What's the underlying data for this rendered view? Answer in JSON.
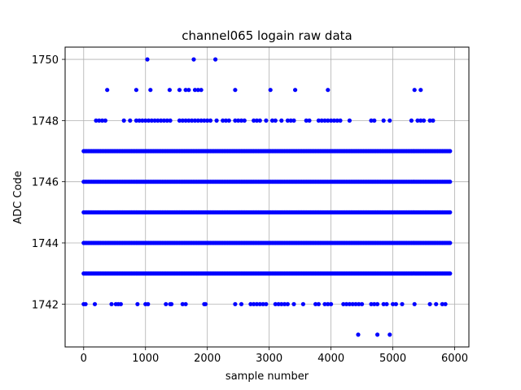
{
  "chart_data": {
    "type": "scatter",
    "title": "channel065 logain raw data",
    "xlabel": "sample number",
    "ylabel": "ADC Code",
    "xlim": [
      -300,
      6230
    ],
    "ylim": [
      1740.6,
      1750.4
    ],
    "xticks": [
      0,
      1000,
      2000,
      3000,
      4000,
      5000,
      6000
    ],
    "yticks": [
      1742,
      1744,
      1746,
      1748,
      1750
    ],
    "grid": true,
    "legend": "none",
    "marker_color": "#0000ff",
    "x_range": [
      0,
      5940
    ],
    "dense_levels": [
      1743,
      1744,
      1745,
      1746,
      1747
    ],
    "sparse_levels": {
      "1742": [
        0,
        30,
        180,
        450,
        520,
        560,
        600,
        870,
        1000,
        1040,
        1330,
        1400,
        1420,
        1600,
        1650,
        1950,
        1970,
        2450,
        2550,
        2700,
        2750,
        2800,
        2850,
        2900,
        2950,
        3100,
        3150,
        3200,
        3250,
        3300,
        3400,
        3550,
        3750,
        3800,
        3900,
        3950,
        4000,
        4200,
        4250,
        4300,
        4350,
        4400,
        4450,
        4500,
        4650,
        4700,
        4750,
        4850,
        4900,
        5000,
        5050,
        5150,
        5350,
        5600,
        5700,
        5800,
        5850
      ],
      "1748": [
        200,
        250,
        300,
        350,
        650,
        750,
        850,
        900,
        950,
        1000,
        1050,
        1100,
        1150,
        1200,
        1250,
        1300,
        1350,
        1400,
        1550,
        1600,
        1650,
        1700,
        1750,
        1800,
        1850,
        1900,
        1950,
        2000,
        2050,
        2150,
        2250,
        2300,
        2350,
        2450,
        2500,
        2550,
        2600,
        2750,
        2800,
        2850,
        2950,
        3050,
        3100,
        3200,
        3300,
        3350,
        3400,
        3600,
        3650,
        3800,
        3850,
        3900,
        3950,
        4000,
        4050,
        4100,
        4150,
        4300,
        4650,
        4700,
        4850,
        4950,
        5300,
        5400,
        5450,
        5500,
        5600,
        5650
      ],
      "1749": [
        380,
        850,
        1080,
        1390,
        1550,
        1650,
        1700,
        1800,
        1850,
        1900,
        2450,
        3020,
        3420,
        3950,
        5350,
        5450
      ],
      "1750": [
        1030,
        1780,
        2130
      ],
      "1741": [
        4440,
        4750,
        4950
      ]
    }
  }
}
